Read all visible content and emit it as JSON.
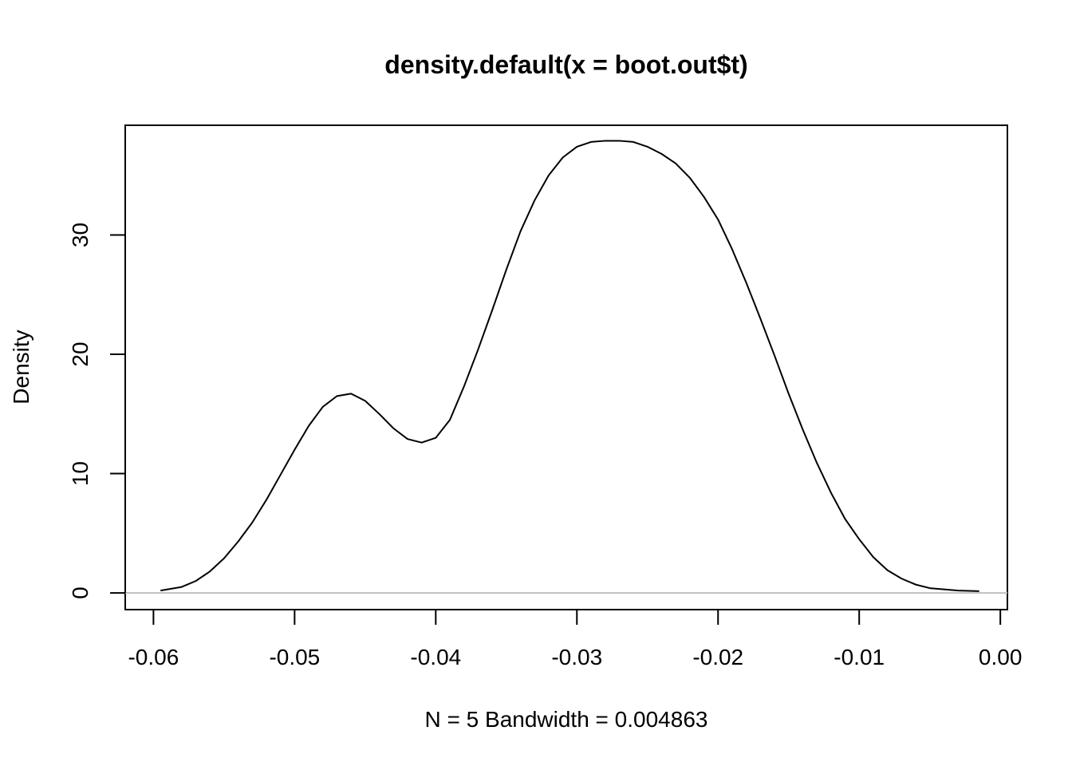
{
  "chart_data": {
    "type": "line",
    "title": "density.default(x = boot.out$t)",
    "xlabel": "N = 5   Bandwidth = 0.004863",
    "ylabel": "Density",
    "xlim": [
      -0.062,
      0.0005
    ],
    "ylim": [
      -1.4,
      39.2
    ],
    "x_ticks": [
      -0.06,
      -0.05,
      -0.04,
      -0.03,
      -0.02,
      -0.01,
      0.0
    ],
    "x_tick_labels": [
      "-0.06",
      "-0.05",
      "-0.04",
      "-0.03",
      "-0.02",
      "-0.01",
      "0.00"
    ],
    "y_ticks": [
      0,
      10,
      20,
      30
    ],
    "y_tick_labels": [
      "0",
      "10",
      "20",
      "30"
    ],
    "zero_line_color": "#c0c0c0",
    "line_color": "#000000",
    "series": [
      {
        "x": [
          -0.0595,
          -0.058,
          -0.057,
          -0.056,
          -0.055,
          -0.054,
          -0.053,
          -0.052,
          -0.051,
          -0.05,
          -0.049,
          -0.048,
          -0.047,
          -0.046,
          -0.045,
          -0.044,
          -0.043,
          -0.042,
          -0.041,
          -0.04,
          -0.039,
          -0.038,
          -0.037,
          -0.036,
          -0.035,
          -0.034,
          -0.033,
          -0.032,
          -0.031,
          -0.03,
          -0.029,
          -0.028,
          -0.027,
          -0.026,
          -0.025,
          -0.024,
          -0.023,
          -0.022,
          -0.021,
          -0.02,
          -0.019,
          -0.018,
          -0.017,
          -0.016,
          -0.015,
          -0.014,
          -0.013,
          -0.012,
          -0.011,
          -0.01,
          -0.009,
          -0.008,
          -0.007,
          -0.006,
          -0.005,
          -0.004,
          -0.003,
          -0.0015
        ],
        "y": [
          0.2,
          0.5,
          1.0,
          1.8,
          2.9,
          4.3,
          5.9,
          7.8,
          9.9,
          12.0,
          14.0,
          15.6,
          16.5,
          16.7,
          16.1,
          15.0,
          13.8,
          12.9,
          12.6,
          13.0,
          14.5,
          17.3,
          20.4,
          23.7,
          27.1,
          30.3,
          32.9,
          35.0,
          36.5,
          37.4,
          37.8,
          37.9,
          37.9,
          37.8,
          37.4,
          36.8,
          36.0,
          34.8,
          33.2,
          31.3,
          28.8,
          26.0,
          23.0,
          19.9,
          16.7,
          13.7,
          10.9,
          8.4,
          6.2,
          4.5,
          3.0,
          1.9,
          1.2,
          0.7,
          0.4,
          0.3,
          0.2,
          0.15
        ]
      }
    ]
  }
}
